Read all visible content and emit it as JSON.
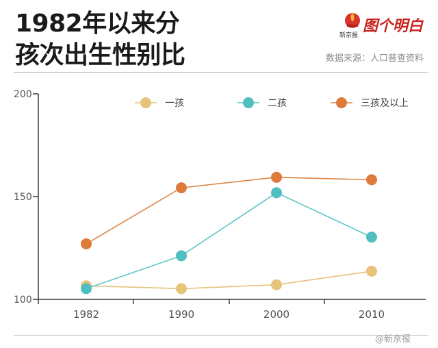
{
  "title_line1": "1982年以来分",
  "title_line2": "孩次出生性别比",
  "logo": {
    "brand": "图个明白",
    "small": "新京报"
  },
  "source": "数据来源：人口普查资料",
  "watermark": "@新京报",
  "colors": {
    "series1": "#e8c47b",
    "series2": "#4fbfc1",
    "series3": "#de7a3a",
    "line1": "#e6c27a",
    "line2": "#5ec5c6",
    "line3": "#dd8542",
    "axis": "#3a3a3a",
    "tick_label": "#555555"
  },
  "chart_data": {
    "type": "line",
    "categories": [
      "1982",
      "1990",
      "2000",
      "2010"
    ],
    "y_ticks": [
      "100",
      "150",
      "200"
    ],
    "ylim": [
      100,
      200
    ],
    "legend_position": "top",
    "series": [
      {
        "name": "一孩",
        "values": [
          106.6,
          105.2,
          107.1,
          113.7
        ]
      },
      {
        "name": "二孩",
        "values": [
          105.2,
          121.2,
          151.9,
          130.3
        ]
      },
      {
        "name": "三孩及以上",
        "values": [
          127.0,
          154.3,
          159.4,
          158.2
        ]
      }
    ]
  }
}
